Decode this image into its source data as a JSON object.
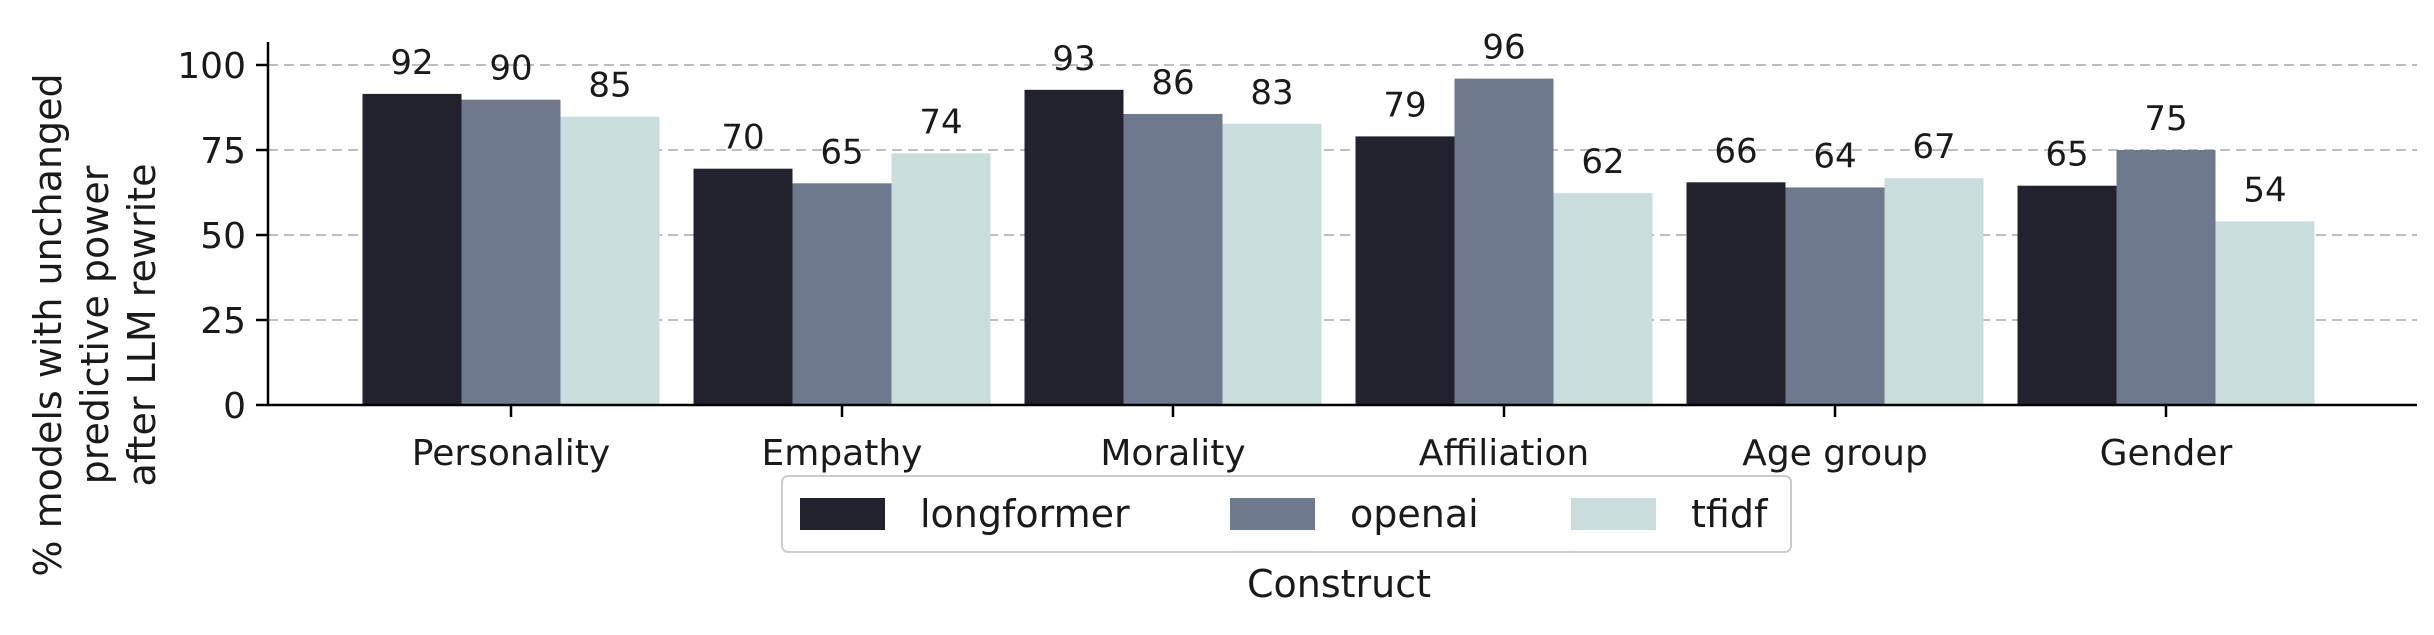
{
  "chart_data": {
    "type": "bar",
    "title": "",
    "xlabel": "Construct",
    "ylabel_lines": [
      "% models with unchanged",
      "predictive power",
      "after LLM rewrite"
    ],
    "ylim": [
      0,
      100
    ],
    "yticks": [
      0,
      25,
      50,
      75,
      100
    ],
    "grid": "horizontal dashed",
    "legend_position": "bottom-center",
    "categories": [
      "Personality",
      "Empathy",
      "Morality",
      "Affiliation",
      "Age group",
      "Gender"
    ],
    "series": [
      {
        "name": "longformer",
        "color": "#22212e",
        "values": [
          92,
          70,
          93,
          79,
          66,
          65
        ]
      },
      {
        "name": "openai",
        "color": "#6e798d",
        "values": [
          90,
          65,
          86,
          96,
          64,
          75
        ]
      },
      {
        "name": "tfidf",
        "color": "#c9dddc",
        "values": [
          85,
          74,
          83,
          62,
          67,
          54
        ]
      }
    ],
    "bar_heights": [
      [
        91.5,
        69.5,
        92.7,
        79.0,
        65.5,
        64.5
      ],
      [
        89.8,
        65.2,
        85.6,
        96.0,
        64.0,
        75.0
      ],
      [
        84.8,
        74.0,
        82.7,
        62.3,
        66.7,
        54.0
      ]
    ]
  }
}
